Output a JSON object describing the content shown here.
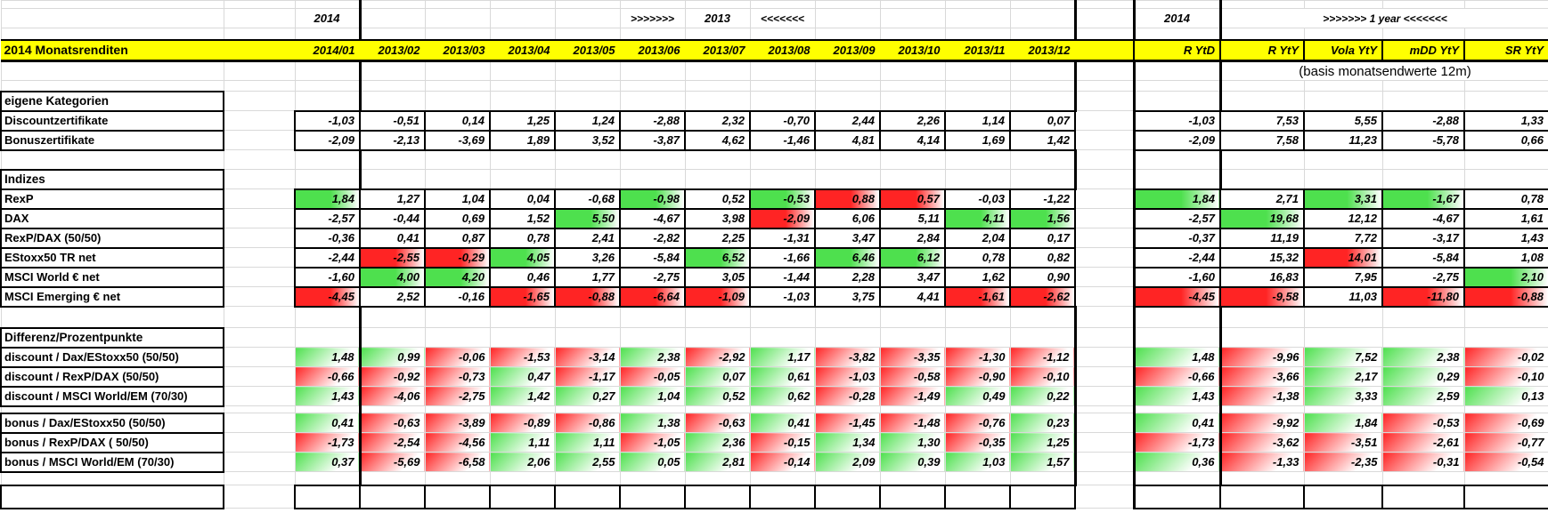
{
  "colors": {
    "header_bg": "#ffff00",
    "positive": "#4ee04e",
    "negative": "#ff2424",
    "gridline": "#d9d9d9",
    "border": "#000000"
  },
  "sheet": {
    "title": "2014 Monatsrenditen",
    "top_labels": {
      "year_left": "2014",
      "arrows_right": ">>>>>>>",
      "year_mid": "2013",
      "arrows_left": "<<<<<<<",
      "year_right": "2014",
      "one_year": ">>>>>>> 1 year <<<<<<<"
    },
    "basis_note": "(basis monatsendwerte 12m)",
    "month_headers": [
      "2014/01",
      "2013/02",
      "2013/03",
      "2013/04",
      "2013/05",
      "2013/06",
      "2013/07",
      "2013/08",
      "2013/09",
      "2013/10",
      "2013/11",
      "2013/12"
    ],
    "right_headers": [
      "R YtD",
      "R YtY",
      "Vola YtY",
      "mDD YtY",
      "SR YtY"
    ],
    "groups": [
      {
        "title": "eigene Kategorien",
        "style": "box",
        "sign_colors": false,
        "rows": [
          {
            "label": "Discountzertifikate",
            "months": [
              "-1,03",
              "-0,51",
              "0,14",
              "1,25",
              "1,24",
              "-2,88",
              "2,32",
              "-0,70",
              "2,44",
              "2,26",
              "1,14",
              "0,07"
            ],
            "right": [
              "-1,03",
              "7,53",
              "5,55",
              "-2,88",
              "1,33"
            ]
          },
          {
            "label": "Bonuszertifikate",
            "months": [
              "-2,09",
              "-2,13",
              "-3,69",
              "1,89",
              "3,52",
              "-3,87",
              "4,62",
              "-1,46",
              "4,81",
              "4,14",
              "1,69",
              "1,42"
            ],
            "right": [
              "-2,09",
              "7,58",
              "11,23",
              "-5,78",
              "0,66"
            ]
          }
        ]
      },
      {
        "title": "Indizes",
        "style": "box",
        "sign_colors": false,
        "rows": [
          {
            "label": "RexP",
            "months": [
              [
                "1,84",
                "g"
              ],
              "1,27",
              "1,04",
              "0,04",
              "-0,68",
              [
                "-0,98",
                "g"
              ],
              "0,52",
              [
                "-0,53",
                "g"
              ],
              [
                "0,88",
                "r"
              ],
              [
                "0,57",
                "r"
              ],
              "-0,03",
              "-1,22"
            ],
            "right": [
              [
                "1,84",
                "g"
              ],
              "2,71",
              [
                "3,31",
                "g"
              ],
              [
                "-1,67",
                "g"
              ],
              "0,78"
            ]
          },
          {
            "label": "DAX",
            "months": [
              "-2,57",
              "-0,44",
              "0,69",
              "1,52",
              [
                "5,50",
                "g"
              ],
              "-4,67",
              "3,98",
              [
                "-2,09",
                "r"
              ],
              "6,06",
              "5,11",
              [
                "4,11",
                "g"
              ],
              [
                "1,56",
                "g"
              ]
            ],
            "right": [
              "-2,57",
              [
                "19,68",
                "g"
              ],
              "12,12",
              "-4,67",
              "1,61"
            ]
          },
          {
            "label": "RexP/DAX (50/50)",
            "months": [
              "-0,36",
              "0,41",
              "0,87",
              "0,78",
              "2,41",
              "-2,82",
              "2,25",
              "-1,31",
              "3,47",
              "2,84",
              "2,04",
              "0,17"
            ],
            "right": [
              "-0,37",
              "11,19",
              "7,72",
              "-3,17",
              "1,43"
            ]
          },
          {
            "label": "EStoxx50 TR net",
            "months": [
              "-2,44",
              [
                "-2,55",
                "r"
              ],
              [
                "-0,29",
                "r"
              ],
              [
                "4,05",
                "g"
              ],
              "3,26",
              "-5,84",
              [
                "6,52",
                "g"
              ],
              "-1,66",
              [
                "6,46",
                "g"
              ],
              [
                "6,12",
                "g"
              ],
              "0,78",
              "0,82"
            ],
            "right": [
              "-2,44",
              "15,32",
              [
                "14,01",
                "r"
              ],
              "-5,84",
              "1,08"
            ]
          },
          {
            "label": "MSCI World € net",
            "months": [
              "-1,60",
              [
                "4,00",
                "g"
              ],
              [
                "4,20",
                "g"
              ],
              "0,46",
              "1,77",
              "-2,75",
              "3,05",
              "-1,44",
              "2,28",
              "3,47",
              "1,62",
              "0,90"
            ],
            "right": [
              "-1,60",
              "16,83",
              "7,95",
              "-2,75",
              [
                "2,10",
                "g"
              ]
            ]
          },
          {
            "label": "MSCI Emerging € net",
            "months": [
              [
                "-4,45",
                "r"
              ],
              "2,52",
              "-0,16",
              [
                "-1,65",
                "r"
              ],
              [
                "-0,88",
                "r"
              ],
              [
                "-6,64",
                "r"
              ],
              [
                "-1,09",
                "r"
              ],
              "-1,03",
              "3,75",
              "4,41",
              [
                "-1,61",
                "r"
              ],
              [
                "-2,62",
                "r"
              ]
            ],
            "right": [
              [
                "-4,45",
                "r"
              ],
              [
                "-9,58",
                "r"
              ],
              "11,03",
              [
                "-11,80",
                "r"
              ],
              [
                "-0,88",
                "r"
              ]
            ]
          }
        ]
      },
      {
        "title": "Differenz/Prozentpunkte",
        "style": "flat",
        "sign_colors": true,
        "rows": [
          {
            "label": "discount / Dax/EStoxx50 (50/50)",
            "months": [
              "1,48",
              "0,99",
              "-0,06",
              "-1,53",
              "-3,14",
              "2,38",
              "-2,92",
              "1,17",
              "-3,82",
              "-3,35",
              "-1,30",
              "-1,12"
            ],
            "right": [
              "1,48",
              "-9,96",
              "7,52",
              "2,38",
              "-0,02"
            ]
          },
          {
            "label": "discount / RexP/DAX (50/50)",
            "months": [
              "-0,66",
              "-0,92",
              "-0,73",
              "0,47",
              "-1,17",
              "-0,05",
              "0,07",
              "0,61",
              "-1,03",
              "-0,58",
              "-0,90",
              "-0,10"
            ],
            "right": [
              "-0,66",
              "-3,66",
              "2,17",
              "0,29",
              "-0,10"
            ]
          },
          {
            "label": "discount / MSCI World/EM (70/30)",
            "months": [
              "1,43",
              "-4,06",
              "-2,75",
              "1,42",
              "0,27",
              "1,04",
              "0,52",
              "0,62",
              "-0,28",
              "-1,49",
              "0,49",
              "0,22"
            ],
            "right": [
              "1,43",
              "-1,38",
              "3,33",
              "2,59",
              "0,13"
            ]
          }
        ]
      },
      {
        "title": null,
        "style": "flat",
        "sign_colors": true,
        "rows": [
          {
            "label": "bonus / Dax/EStoxx50 (50/50)",
            "months": [
              "0,41",
              "-0,63",
              "-3,89",
              "-0,89",
              "-0,86",
              "1,38",
              "-0,63",
              "0,41",
              "-1,45",
              "-1,48",
              "-0,76",
              "0,23"
            ],
            "right": [
              "0,41",
              "-9,92",
              "1,84",
              "-0,53",
              "-0,69"
            ]
          },
          {
            "label": "bonus / RexP/DAX ( 50/50)",
            "months": [
              "-1,73",
              "-2,54",
              "-4,56",
              "1,11",
              "1,11",
              "-1,05",
              "2,36",
              "-0,15",
              "1,34",
              "1,30",
              "-0,35",
              "1,25"
            ],
            "right": [
              "-1,73",
              "-3,62",
              "-3,51",
              "-2,61",
              "-0,77"
            ]
          },
          {
            "label": "bonus / MSCI World/EM (70/30)",
            "months": [
              "0,37",
              "-5,69",
              "-6,58",
              "2,06",
              "2,55",
              "0,05",
              "2,81",
              "-0,14",
              "2,09",
              "0,39",
              "1,03",
              "1,57"
            ],
            "right": [
              "0,36",
              "-1,33",
              "-2,35",
              "-0,31",
              "-0,54"
            ]
          }
        ]
      }
    ]
  }
}
